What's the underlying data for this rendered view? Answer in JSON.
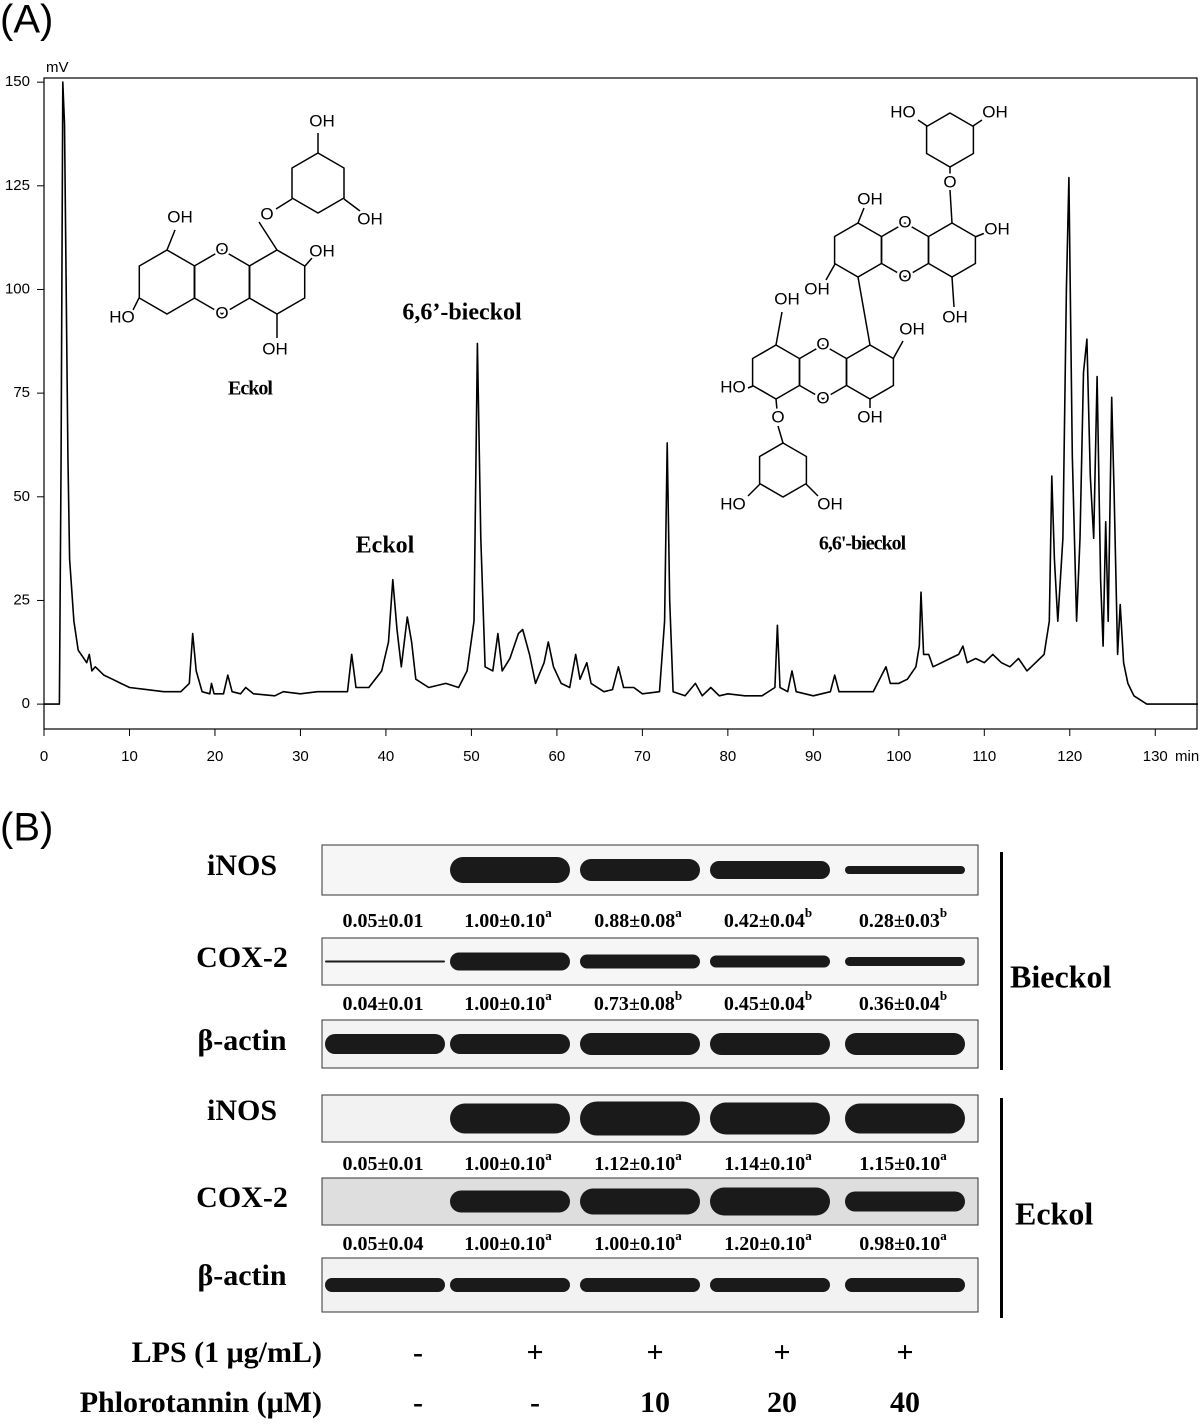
{
  "chart_data": {
    "type": "line",
    "panel_label": "(A)",
    "y_unit_label": "mV",
    "x_unit_label": "min",
    "color": "#000000",
    "xlim": [
      0,
      135
    ],
    "ylim": [
      -6,
      151
    ],
    "xticks": [
      0,
      10,
      20,
      30,
      40,
      50,
      60,
      70,
      80,
      90,
      100,
      110,
      120,
      130
    ],
    "yticks": [
      0,
      25,
      50,
      75,
      100,
      125,
      150
    ],
    "x": [
      0,
      1.8,
      2.0,
      2.2,
      2.4,
      2.6,
      2.8,
      3,
      3.5,
      4,
      5,
      5.3,
      5.6,
      6,
      7,
      8,
      9,
      10,
      12,
      14,
      16,
      17,
      17.4,
      17.8,
      18.5,
      19.4,
      19.6,
      19.9,
      21,
      21.5,
      22,
      23,
      23.6,
      24.5,
      27,
      28,
      30,
      32,
      34,
      35.5,
      36,
      36.5,
      38,
      39.5,
      40.3,
      40.8,
      41.3,
      41.8,
      42.5,
      43,
      43.5,
      45,
      47,
      48.5,
      49.5,
      50.3,
      50.7,
      51.1,
      51.6,
      52.5,
      53.1,
      53.6,
      54.5,
      55.5,
      56,
      56.8,
      57.5,
      58.5,
      59,
      59.6,
      60.5,
      61.5,
      62.2,
      62.7,
      63.5,
      64,
      65.5,
      66.5,
      67.2,
      67.8,
      69,
      70,
      72,
      72.6,
      72.9,
      73.2,
      73.6,
      75,
      76.2,
      77,
      78,
      79,
      80,
      82,
      84,
      85.5,
      85.8,
      86.1,
      87,
      87.5,
      88,
      90,
      92,
      92.5,
      93,
      95,
      97,
      98.5,
      99,
      100,
      101,
      102,
      102.4,
      102.6,
      102.9,
      103.5,
      104,
      105,
      106,
      107,
      107.5,
      108,
      109,
      110,
      111,
      112,
      113,
      114,
      115,
      116,
      117,
      117.6,
      117.9,
      118.2,
      118.6,
      119.2,
      119.6,
      119.9,
      120.3,
      120.8,
      121.2,
      121.6,
      122,
      122.4,
      122.8,
      123.2,
      123.6,
      123.9,
      124.2,
      124.5,
      124.9,
      125.2,
      125.6,
      125.9,
      126.3,
      126.8,
      127.5,
      129,
      135
    ],
    "values": [
      0,
      0,
      60,
      150,
      140,
      100,
      60,
      35,
      20,
      13,
      10,
      12,
      8,
      9,
      7,
      6,
      5,
      4,
      3.5,
      3,
      3,
      5,
      17,
      8,
      3,
      2.5,
      5,
      2.5,
      2.5,
      7,
      3,
      2.5,
      4,
      2.5,
      2,
      3,
      2.5,
      3,
      3,
      3,
      12,
      4,
      4,
      8,
      15,
      30,
      18,
      9,
      21,
      15,
      6,
      4,
      5,
      4,
      8,
      20,
      87,
      40,
      9,
      8,
      17,
      8,
      11,
      17,
      18,
      12,
      5,
      10,
      15,
      9,
      5,
      4,
      12,
      6,
      10,
      5,
      3,
      3.5,
      9,
      4,
      4,
      2.5,
      3,
      20,
      63,
      25,
      3,
      2,
      5,
      2,
      4,
      2,
      2.5,
      2,
      2,
      4,
      19,
      4,
      3,
      8,
      3,
      2,
      3,
      7,
      3,
      3,
      3,
      9,
      5,
      5,
      6,
      9,
      14,
      27,
      12,
      12,
      9,
      10,
      11,
      12,
      14,
      10,
      11,
      10,
      12,
      10,
      9,
      11,
      8,
      10,
      12,
      20,
      55,
      35,
      20,
      40,
      100,
      127,
      60,
      20,
      40,
      80,
      88,
      55,
      40,
      79,
      30,
      14,
      44,
      20,
      74,
      50,
      12,
      24,
      10,
      5,
      2,
      0,
      0
    ],
    "annotations": [
      "Eckol",
      "6,6’-bieckol"
    ],
    "structures": [
      {
        "name": "Eckol",
        "atoms": [
          "OH",
          "OH",
          "O",
          "OH",
          "OH",
          "O",
          "HO",
          "O",
          "OH"
        ]
      },
      {
        "name": "6,6'-bieckol",
        "atoms": [
          "HO",
          "OH",
          "O",
          "OH",
          "OH",
          "O",
          "OH",
          "O",
          "OH",
          "OH",
          "OH",
          "O",
          "HO",
          "O",
          "OH",
          "O",
          "HO",
          "OH"
        ]
      }
    ]
  },
  "blot": {
    "panel_label": "(B)",
    "groups": [
      {
        "name": "Bieckol",
        "rows": [
          {
            "protein": "iNOS",
            "values": [
              {
                "text": "0.05±0.01"
              },
              {
                "text": "1.00±0.10",
                "sup": "a"
              },
              {
                "text": "0.88±0.08",
                "sup": "a"
              },
              {
                "text": "0.42±0.04",
                "sup": "b"
              },
              {
                "text": "0.28±0.03",
                "sup": "b"
              }
            ]
          },
          {
            "protein": "COX-2",
            "values": [
              {
                "text": "0.04±0.01"
              },
              {
                "text": "1.00±0.10",
                "sup": "a"
              },
              {
                "text": "0.73±0.08",
                "sup": "b"
              },
              {
                "text": "0.45±0.04",
                "sup": "b"
              },
              {
                "text": "0.36±0.04",
                "sup": "b"
              }
            ]
          },
          {
            "protein": "β-actin"
          }
        ]
      },
      {
        "name": "Eckol",
        "rows": [
          {
            "protein": "iNOS",
            "values": [
              {
                "text": "0.05±0.01"
              },
              {
                "text": "1.00±0.10",
                "sup": "a"
              },
              {
                "text": "1.12±0.10",
                "sup": "a"
              },
              {
                "text": "1.14±0.10",
                "sup": "a"
              },
              {
                "text": "1.15±0.10",
                "sup": "a"
              }
            ]
          },
          {
            "protein": "COX-2",
            "values": [
              {
                "text": "0.05±0.04"
              },
              {
                "text": "1.00±0.10",
                "sup": "a"
              },
              {
                "text": "1.00±0.10",
                "sup": "a"
              },
              {
                "text": "1.20±0.10",
                "sup": "a"
              },
              {
                "text": "0.98±0.10",
                "sup": "a"
              }
            ]
          },
          {
            "protein": "β-actin"
          }
        ]
      }
    ],
    "treatments": [
      {
        "label": "LPS (1 μg/mL)",
        "lanes": [
          "-",
          "+",
          "+",
          "+",
          "+"
        ]
      },
      {
        "label": "Phlorotannin (μM)",
        "lanes": [
          "-",
          "-",
          "10",
          "20",
          "40"
        ]
      }
    ]
  }
}
